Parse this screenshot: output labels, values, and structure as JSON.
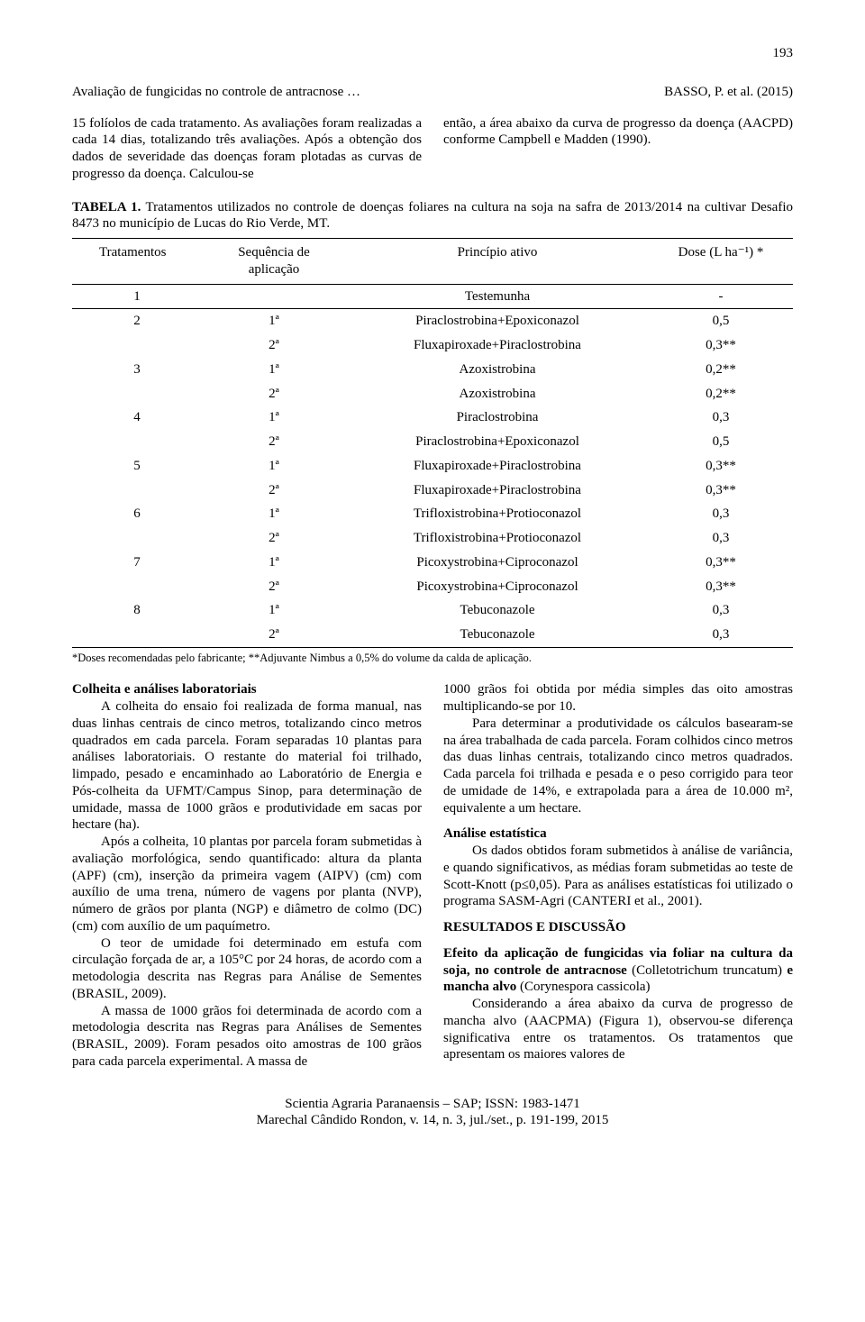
{
  "page_number": "193",
  "running_head_left": "Avaliação de fungicidas no controle de antracnose …",
  "running_head_right": "BASSO, P. et al. (2015)",
  "intro_left": "15 folíolos de cada tratamento. As avaliações foram realizadas a cada 14 dias, totalizando três avaliações. Após a obtenção dos dados de severidade das doenças foram plotadas as curvas de progresso da doença. Calculou-se",
  "intro_right": "então, a área abaixo da curva de progresso da doença (AACPD) conforme Campbell e Madden (1990).",
  "table_label": "TABELA 1.",
  "table_caption": " Tratamentos utilizados no controle de doenças foliares na cultura na soja na safra de 2013/2014 na cultivar Desafio 8473 no município de Lucas do Rio Verde, MT.",
  "table_headers": {
    "c1": "Tratamentos",
    "c2_l1": "Sequência de",
    "c2_l2": "aplicação",
    "c3": "Princípio ativo",
    "c4": "Dose (L ha⁻¹) *"
  },
  "table_rows": [
    {
      "t": "1",
      "s": "",
      "p": "Testemunha",
      "d": "-"
    },
    {
      "t": "2",
      "s": "1ª",
      "p": "Piraclostrobina+Epoxiconazol",
      "d": "0,5"
    },
    {
      "t": "",
      "s": "2ª",
      "p": "Fluxapiroxade+Piraclostrobina",
      "d": "0,3**"
    },
    {
      "t": "3",
      "s": "1ª",
      "p": "Azoxistrobina",
      "d": "0,2**"
    },
    {
      "t": "",
      "s": "2ª",
      "p": "Azoxistrobina",
      "d": "0,2**"
    },
    {
      "t": "4",
      "s": "1ª",
      "p": "Piraclostrobina",
      "d": "0,3"
    },
    {
      "t": "",
      "s": "2ª",
      "p": "Piraclostrobina+Epoxiconazol",
      "d": "0,5"
    },
    {
      "t": "5",
      "s": "1ª",
      "p": "Fluxapiroxade+Piraclostrobina",
      "d": "0,3**"
    },
    {
      "t": "",
      "s": "2ª",
      "p": "Fluxapiroxade+Piraclostrobina",
      "d": "0,3**"
    },
    {
      "t": "6",
      "s": "1ª",
      "p": "Trifloxistrobina+Protioconazol",
      "d": "0,3"
    },
    {
      "t": "",
      "s": "2ª",
      "p": "Trifloxistrobina+Protioconazol",
      "d": "0,3"
    },
    {
      "t": "7",
      "s": "1ª",
      "p": "Picoxystrobina+Ciproconazol",
      "d": "0,3**"
    },
    {
      "t": "",
      "s": "2ª",
      "p": "Picoxystrobina+Ciproconazol",
      "d": "0,3**"
    },
    {
      "t": "8",
      "s": "1ª",
      "p": "Tebuconazole",
      "d": "0,3"
    },
    {
      "t": "",
      "s": "2ª",
      "p": "Tebuconazole",
      "d": "0,3"
    }
  ],
  "table_footnote": "*Doses recomendadas pelo fabricante; **Adjuvante Nimbus a 0,5% do volume da calda de aplicação.",
  "sec_colheita_heading": "Colheita e análises laboratoriais",
  "sec_colheita_p1": "A colheita do ensaio foi realizada de forma manual, nas duas linhas centrais de cinco metros, totalizando cinco metros quadrados em cada parcela. Foram separadas 10 plantas para análises laboratoriais. O restante do material foi trilhado, limpado, pesado e encaminhado ao Laboratório de Energia e Pós-colheita da UFMT/Campus Sinop, para determinação de umidade, massa de 1000 grãos e produtividade em sacas por hectare (ha).",
  "sec_colheita_p2": "Após a colheita, 10 plantas por parcela foram submetidas à avaliação morfológica, sendo quantificado: altura da planta (APF) (cm), inserção da primeira vagem (AIPV) (cm) com auxílio de uma trena, número de vagens por planta (NVP), número de grãos por planta (NGP) e diâmetro de colmo (DC) (cm) com auxílio de um paquímetro.",
  "sec_colheita_p3": "O teor de umidade foi determinado em estufa com circulação forçada de ar, a 105°C por 24 horas, de acordo com a metodologia descrita nas Regras para Análise de Sementes (BRASIL, 2009).",
  "sec_colheita_p4": "A massa de 1000 grãos foi determinada de acordo com a metodologia descrita nas Regras para Análises de Sementes (BRASIL, 2009). Foram pesados oito amostras de 100 grãos para cada parcela experimental. A massa de",
  "col2_p1": "1000 grãos foi obtida por média simples das oito amostras multiplicando-se por 10.",
  "col2_p2": "Para determinar a produtividade os cálculos basearam-se na área trabalhada de cada parcela. Foram colhidos cinco metros das duas linhas centrais, totalizando cinco metros quadrados. Cada parcela foi trilhada e pesada e o peso corrigido para teor de umidade de 14%, e extrapolada para a área de 10.000 m², equivalente a um hectare.",
  "sec_analise_heading": "Análise estatística",
  "sec_analise_p1": "Os dados obtidos foram submetidos à análise de variância, e quando significativos, as médias foram submetidas ao teste de Scott-Knott (p≤0,05). Para as análises estatísticas foi utilizado o programa SASM-Agri (CANTERI et al., 2001).",
  "sec_resultados_heading": "RESULTADOS E DISCUSSÃO",
  "sec_efeito_bold1": "Efeito da aplicação de fungicidas via foliar na cultura da soja, no controle de antracnose ",
  "sec_efeito_italic1": "(Colletotrichum truncatum)",
  "sec_efeito_bold2": " e mancha alvo ",
  "sec_efeito_italic2": "(Corynespora cassicola)",
  "sec_efeito_p1": "Considerando a área abaixo da curva de progresso de mancha alvo (AACPMA) (Figura 1), observou-se diferença significativa entre os tratamentos. Os tratamentos que apresentam os maiores valores de",
  "footer_l1": "Scientia Agraria Paranaensis – SAP;   ISSN: 1983-1471",
  "footer_l2": "Marechal Cândido Rondon, v. 14, n. 3, jul./set., p. 191-199, 2015"
}
